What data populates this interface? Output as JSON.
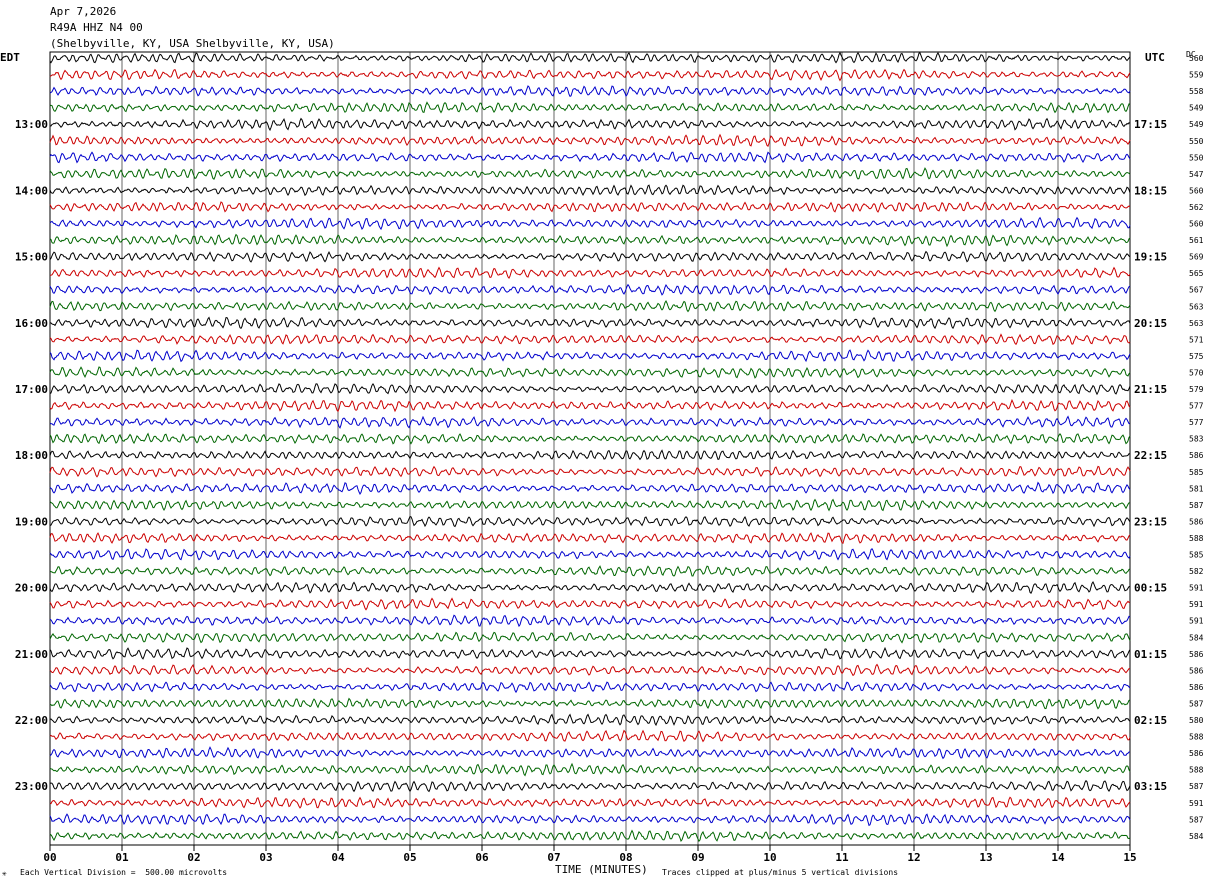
{
  "header": {
    "date": "Apr 7,2026",
    "station": "R49A HHZ N4 00",
    "location": "(Shelbyville, KY, USA Shelbyville, KY, USA)"
  },
  "left_tz": "EDT",
  "right_tz": "UTC",
  "dc_label": "DC",
  "corner_glyph": "✳",
  "footer": {
    "scale_note": "Each Vertical Division =  500.00 microvolts",
    "clip_note": "Traces clipped at plus/minus 5 vertical divisions"
  },
  "chart_data": {
    "type": "line",
    "title": "",
    "xlabel": "TIME (MINUTES)",
    "x_ticks": [
      "00",
      "01",
      "02",
      "03",
      "04",
      "05",
      "06",
      "07",
      "08",
      "09",
      "10",
      "11",
      "12",
      "13",
      "14",
      "15"
    ],
    "xlim": [
      0,
      15
    ],
    "trace_colors": [
      "#000000",
      "#cc0000",
      "#0000cc",
      "#006600"
    ],
    "left_hour_labels": [
      "13:00",
      "14:00",
      "15:00",
      "16:00",
      "17:00",
      "18:00",
      "19:00",
      "20:00",
      "21:00",
      "22:00",
      "23:00"
    ],
    "right_hour_labels": [
      "17:15",
      "18:15",
      "19:15",
      "20:15",
      "21:15",
      "22:15",
      "23:15",
      "00:15",
      "01:15",
      "02:15",
      "03:15"
    ],
    "dc_offsets": [
      "560",
      "559",
      "558",
      "549",
      "549",
      "550",
      "550",
      "547",
      "560",
      "562",
      "560",
      "561",
      "569",
      "565",
      "567",
      "563",
      "563",
      "571",
      "575",
      "570",
      "579",
      "577",
      "577",
      "583",
      "586",
      "585",
      "581",
      "587",
      "586",
      "588",
      "585",
      "582",
      "591",
      "591",
      "591",
      "584",
      "586",
      "586",
      "586",
      "587",
      "580",
      "588",
      "586",
      "588",
      "587",
      "591",
      "587",
      "584"
    ]
  }
}
